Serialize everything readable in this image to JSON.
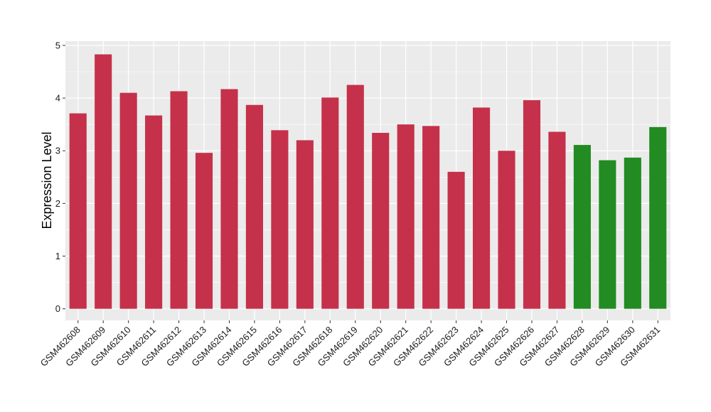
{
  "chart_data": {
    "type": "bar",
    "title": "",
    "xlabel": "",
    "ylabel": "Expression Level",
    "ylim": [
      -0.22,
      5.08
    ],
    "yticks": [
      0,
      1,
      2,
      3,
      4,
      5
    ],
    "grid": true,
    "legend": "none",
    "categories": [
      "GSM462608",
      "GSM462609",
      "GSM462610",
      "GSM462611",
      "GSM462612",
      "GSM462613",
      "GSM462614",
      "GSM462615",
      "GSM462616",
      "GSM462617",
      "GSM462618",
      "GSM462619",
      "GSM462620",
      "GSM462621",
      "GSM462622",
      "GSM462623",
      "GSM462624",
      "GSM462625",
      "GSM462626",
      "GSM462627",
      "GSM462628",
      "GSM462629",
      "GSM462630",
      "GSM462631"
    ],
    "values": [
      3.71,
      4.83,
      4.1,
      3.67,
      4.13,
      2.96,
      4.17,
      3.87,
      3.39,
      3.2,
      4.01,
      4.25,
      3.34,
      3.5,
      3.47,
      2.6,
      3.82,
      3.0,
      3.96,
      3.36,
      3.11,
      2.82,
      2.87,
      3.45
    ],
    "groups": [
      "a",
      "a",
      "a",
      "a",
      "a",
      "a",
      "a",
      "a",
      "a",
      "a",
      "a",
      "a",
      "a",
      "a",
      "a",
      "a",
      "a",
      "a",
      "a",
      "a",
      "b",
      "b",
      "b",
      "b"
    ],
    "colors": {
      "a": "#c5314a",
      "b": "#228b22"
    },
    "panel_background": "#ebebeb",
    "gridline_color": "#ffffff"
  }
}
